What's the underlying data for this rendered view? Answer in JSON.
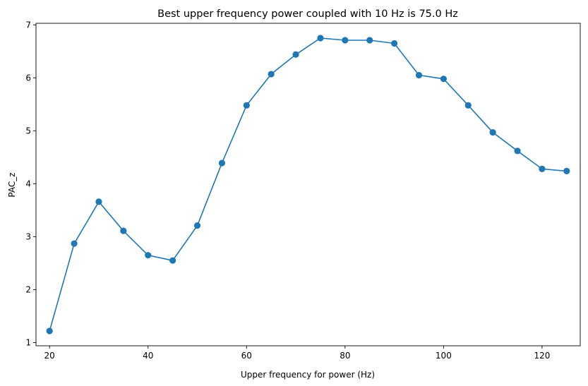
{
  "chart_data": {
    "type": "line",
    "title": "Best upper frequency power coupled with 10 Hz is 75.0 Hz",
    "xlabel": "Upper frequency for power (Hz)",
    "ylabel": "PAC_z",
    "x": [
      20,
      25,
      30,
      35,
      40,
      45,
      50,
      55,
      60,
      65,
      70,
      75,
      80,
      85,
      90,
      95,
      100,
      105,
      110,
      115,
      120,
      125
    ],
    "series": [
      {
        "values": [
          1.22,
          2.87,
          3.66,
          3.11,
          2.65,
          2.55,
          3.21,
          4.39,
          5.48,
          6.07,
          6.44,
          6.75,
          6.71,
          6.71,
          6.65,
          6.05,
          5.98,
          5.48,
          4.97,
          4.62,
          4.28,
          4.24
        ],
        "color": "#1f77b4",
        "marker": "circle"
      }
    ],
    "xlim": [
      17.25,
      127.75
    ],
    "ylim": [
      0.94,
      7.03
    ],
    "xticks": [
      20,
      40,
      60,
      80,
      100,
      120
    ],
    "yticks": [
      1,
      2,
      3,
      4,
      5,
      6,
      7
    ],
    "grid": false,
    "legend": "none"
  }
}
